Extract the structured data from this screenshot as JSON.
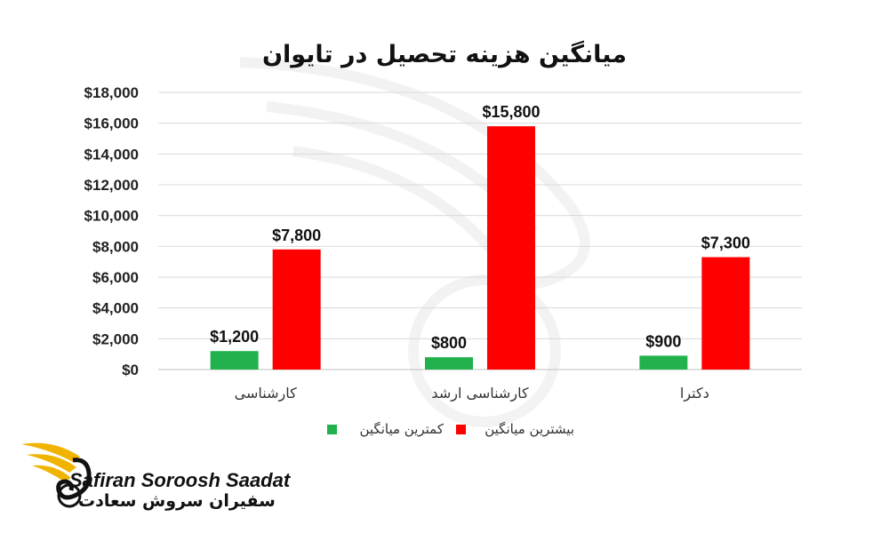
{
  "chart_data": {
    "type": "bar",
    "title": "میانگین هزینه تحصیل در تایوان",
    "categories": [
      "کارشناسی",
      "کارشناسی ارشد",
      "دکترا"
    ],
    "series": [
      {
        "name": "کمترین میانگین",
        "color": "#22b14c",
        "values": [
          1200,
          800,
          900
        ],
        "labels": [
          "$1,200",
          "$800",
          "$900"
        ]
      },
      {
        "name": "بیشترین میانگین",
        "color": "#ff0000",
        "values": [
          7800,
          15800,
          7300
        ],
        "labels": [
          "$7,800",
          "$15,800",
          "$7,300"
        ]
      }
    ],
    "ylim": [
      0,
      18000
    ],
    "yticks": [
      0,
      2000,
      4000,
      6000,
      8000,
      10000,
      12000,
      14000,
      16000,
      18000
    ],
    "ytick_labels": [
      "$0",
      "$2,000",
      "$4,000",
      "$6,000",
      "$8,000",
      "$10,000",
      "$12,000",
      "$14,000",
      "$16,000",
      "$18,000"
    ],
    "grid": true,
    "legend_position": "bottom"
  },
  "brand": {
    "name_en": "Safiran Soroosh Saadat",
    "name_fa": "سفیران سروش سعادت",
    "colors": {
      "gold": "#f0b400",
      "dark": "#111111"
    }
  }
}
